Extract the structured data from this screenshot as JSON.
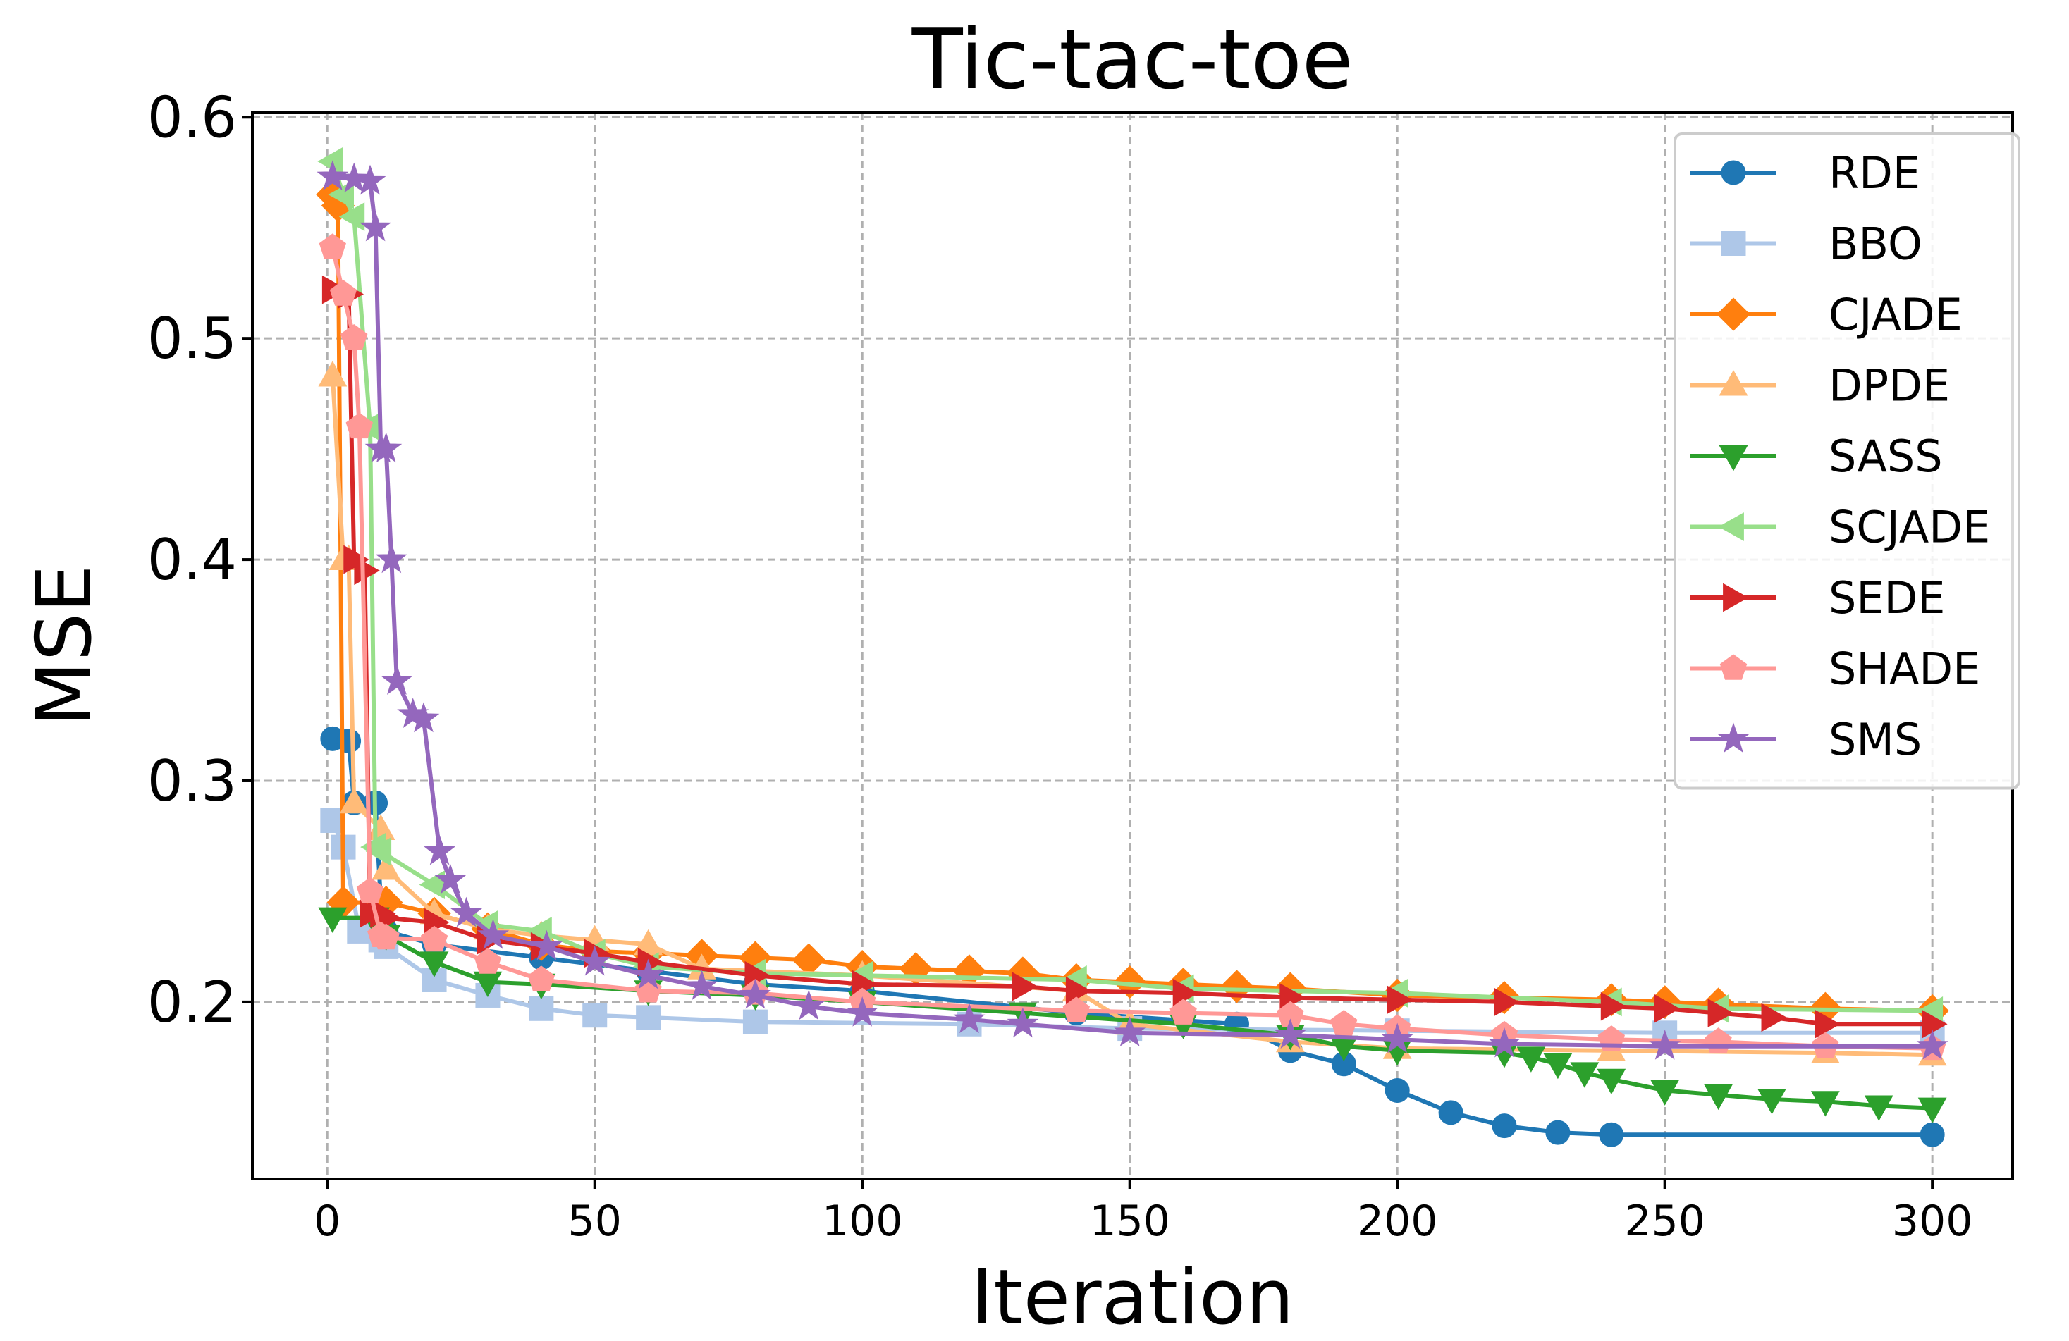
{
  "chart_data": {
    "type": "line",
    "title": "Tic-tac-toe",
    "xlabel": "Iteration",
    "ylabel": "MSE",
    "xlim": [
      -14,
      315
    ],
    "ylim": [
      0.12,
      0.602
    ],
    "xticks": [
      "0",
      "50",
      "100",
      "150",
      "200",
      "250",
      "300"
    ],
    "yticks": [
      "0.2",
      "0.3",
      "0.4",
      "0.5",
      "0.6"
    ],
    "grid": true,
    "legend_position": "top-right",
    "series": [
      {
        "name": "RDE",
        "color": "#1f77b4",
        "marker": "circle",
        "points": [
          [
            1,
            0.319
          ],
          [
            4,
            0.318
          ],
          [
            5,
            0.29
          ],
          [
            9,
            0.29
          ],
          [
            10,
            0.245
          ],
          [
            11,
            0.232
          ],
          [
            20,
            0.226
          ],
          [
            40,
            0.22
          ],
          [
            60,
            0.214
          ],
          [
            80,
            0.208
          ],
          [
            100,
            0.205
          ],
          [
            140,
            0.195
          ],
          [
            170,
            0.19
          ],
          [
            180,
            0.178
          ],
          [
            190,
            0.172
          ],
          [
            200,
            0.16
          ],
          [
            210,
            0.15
          ],
          [
            220,
            0.144
          ],
          [
            230,
            0.141
          ],
          [
            240,
            0.14
          ],
          [
            300,
            0.14
          ]
        ]
      },
      {
        "name": "BBO",
        "color": "#aec7e8",
        "marker": "square",
        "points": [
          [
            1,
            0.282
          ],
          [
            3,
            0.27
          ],
          [
            6,
            0.232
          ],
          [
            10,
            0.228
          ],
          [
            11,
            0.225
          ],
          [
            20,
            0.21
          ],
          [
            30,
            0.203
          ],
          [
            40,
            0.197
          ],
          [
            50,
            0.194
          ],
          [
            60,
            0.193
          ],
          [
            80,
            0.191
          ],
          [
            120,
            0.19
          ],
          [
            150,
            0.188
          ],
          [
            200,
            0.187
          ],
          [
            250,
            0.186
          ],
          [
            300,
            0.186
          ]
        ]
      },
      {
        "name": "CJADE",
        "color": "#ff7f0e",
        "marker": "diamond",
        "points": [
          [
            1,
            0.565
          ],
          [
            2,
            0.56
          ],
          [
            3,
            0.245
          ],
          [
            10,
            0.245
          ],
          [
            11,
            0.245
          ],
          [
            20,
            0.24
          ],
          [
            30,
            0.233
          ],
          [
            40,
            0.226
          ],
          [
            50,
            0.223
          ],
          [
            60,
            0.222
          ],
          [
            70,
            0.221
          ],
          [
            80,
            0.22
          ],
          [
            90,
            0.219
          ],
          [
            100,
            0.216
          ],
          [
            110,
            0.215
          ],
          [
            120,
            0.214
          ],
          [
            130,
            0.213
          ],
          [
            140,
            0.21
          ],
          [
            150,
            0.209
          ],
          [
            160,
            0.208
          ],
          [
            170,
            0.207
          ],
          [
            180,
            0.206
          ],
          [
            200,
            0.203
          ],
          [
            220,
            0.202
          ],
          [
            240,
            0.201
          ],
          [
            250,
            0.2
          ],
          [
            260,
            0.199
          ],
          [
            280,
            0.197
          ],
          [
            300,
            0.196
          ]
        ]
      },
      {
        "name": "DPDE",
        "color": "#ffbb78",
        "marker": "triangle-up",
        "points": [
          [
            1,
            0.483
          ],
          [
            3,
            0.4
          ],
          [
            4,
            0.4
          ],
          [
            5,
            0.29
          ],
          [
            10,
            0.278
          ],
          [
            11,
            0.26
          ],
          [
            20,
            0.24
          ],
          [
            30,
            0.233
          ],
          [
            40,
            0.23
          ],
          [
            50,
            0.228
          ],
          [
            60,
            0.226
          ],
          [
            70,
            0.215
          ],
          [
            100,
            0.212
          ],
          [
            140,
            0.205
          ],
          [
            150,
            0.19
          ],
          [
            180,
            0.182
          ],
          [
            200,
            0.179
          ],
          [
            240,
            0.178
          ],
          [
            280,
            0.177
          ],
          [
            300,
            0.176
          ]
        ]
      },
      {
        "name": "SASS",
        "color": "#2ca02c",
        "marker": "triangle-down",
        "points": [
          [
            1,
            0.238
          ],
          [
            9,
            0.238
          ],
          [
            10,
            0.232
          ],
          [
            11,
            0.23
          ],
          [
            20,
            0.218
          ],
          [
            30,
            0.209
          ],
          [
            40,
            0.208
          ],
          [
            60,
            0.205
          ],
          [
            80,
            0.203
          ],
          [
            100,
            0.2
          ],
          [
            130,
            0.195
          ],
          [
            160,
            0.19
          ],
          [
            180,
            0.185
          ],
          [
            190,
            0.18
          ],
          [
            200,
            0.178
          ],
          [
            220,
            0.177
          ],
          [
            225,
            0.175
          ],
          [
            230,
            0.172
          ],
          [
            235,
            0.168
          ],
          [
            240,
            0.165
          ],
          [
            250,
            0.16
          ],
          [
            260,
            0.158
          ],
          [
            270,
            0.156
          ],
          [
            280,
            0.155
          ],
          [
            290,
            0.153
          ],
          [
            300,
            0.152
          ]
        ]
      },
      {
        "name": "SCJADE",
        "color": "#98df8a",
        "marker": "triangle-left",
        "points": [
          [
            1,
            0.58
          ],
          [
            3,
            0.565
          ],
          [
            5,
            0.555
          ],
          [
            8,
            0.46
          ],
          [
            9,
            0.27
          ],
          [
            10,
            0.268
          ],
          [
            20,
            0.253
          ],
          [
            30,
            0.235
          ],
          [
            40,
            0.232
          ],
          [
            50,
            0.222
          ],
          [
            60,
            0.216
          ],
          [
            80,
            0.213
          ],
          [
            100,
            0.212
          ],
          [
            140,
            0.21
          ],
          [
            160,
            0.206
          ],
          [
            200,
            0.204
          ],
          [
            240,
            0.2
          ],
          [
            260,
            0.197
          ],
          [
            300,
            0.196
          ]
        ]
      },
      {
        "name": "SEDE",
        "color": "#d62728",
        "marker": "triangle-right",
        "points": [
          [
            1,
            0.522
          ],
          [
            4,
            0.52
          ],
          [
            5,
            0.4
          ],
          [
            7,
            0.395
          ],
          [
            8,
            0.24
          ],
          [
            10,
            0.24
          ],
          [
            11,
            0.238
          ],
          [
            20,
            0.236
          ],
          [
            30,
            0.228
          ],
          [
            40,
            0.225
          ],
          [
            50,
            0.222
          ],
          [
            60,
            0.218
          ],
          [
            80,
            0.212
          ],
          [
            100,
            0.208
          ],
          [
            130,
            0.207
          ],
          [
            140,
            0.205
          ],
          [
            160,
            0.204
          ],
          [
            180,
            0.202
          ],
          [
            200,
            0.201
          ],
          [
            220,
            0.2
          ],
          [
            240,
            0.198
          ],
          [
            250,
            0.197
          ],
          [
            260,
            0.195
          ],
          [
            270,
            0.193
          ],
          [
            280,
            0.19
          ],
          [
            300,
            0.19
          ]
        ]
      },
      {
        "name": "SHADE",
        "color": "#ff9896",
        "marker": "pentagon",
        "points": [
          [
            1,
            0.541
          ],
          [
            3,
            0.52
          ],
          [
            5,
            0.5
          ],
          [
            6,
            0.46
          ],
          [
            8,
            0.25
          ],
          [
            10,
            0.23
          ],
          [
            11,
            0.229
          ],
          [
            20,
            0.228
          ],
          [
            30,
            0.218
          ],
          [
            40,
            0.21
          ],
          [
            60,
            0.205
          ],
          [
            80,
            0.204
          ],
          [
            100,
            0.2
          ],
          [
            140,
            0.196
          ],
          [
            160,
            0.195
          ],
          [
            180,
            0.194
          ],
          [
            190,
            0.19
          ],
          [
            200,
            0.188
          ],
          [
            220,
            0.185
          ],
          [
            240,
            0.183
          ],
          [
            260,
            0.182
          ],
          [
            280,
            0.18
          ],
          [
            300,
            0.179
          ]
        ]
      },
      {
        "name": "SMS",
        "color": "#9467bd",
        "marker": "star",
        "points": [
          [
            1,
            0.573
          ],
          [
            5,
            0.572
          ],
          [
            8,
            0.571
          ],
          [
            9,
            0.55
          ],
          [
            10,
            0.45
          ],
          [
            11,
            0.45
          ],
          [
            12,
            0.4
          ],
          [
            13,
            0.345
          ],
          [
            16,
            0.33
          ],
          [
            18,
            0.328
          ],
          [
            21,
            0.268
          ],
          [
            23,
            0.255
          ],
          [
            26,
            0.24
          ],
          [
            31,
            0.23
          ],
          [
            41,
            0.225
          ],
          [
            50,
            0.218
          ],
          [
            60,
            0.212
          ],
          [
            70,
            0.207
          ],
          [
            80,
            0.203
          ],
          [
            90,
            0.198
          ],
          [
            100,
            0.195
          ],
          [
            120,
            0.192
          ],
          [
            130,
            0.19
          ],
          [
            150,
            0.186
          ],
          [
            180,
            0.185
          ],
          [
            200,
            0.183
          ],
          [
            220,
            0.181
          ],
          [
            250,
            0.18
          ],
          [
            300,
            0.18
          ]
        ]
      }
    ]
  }
}
